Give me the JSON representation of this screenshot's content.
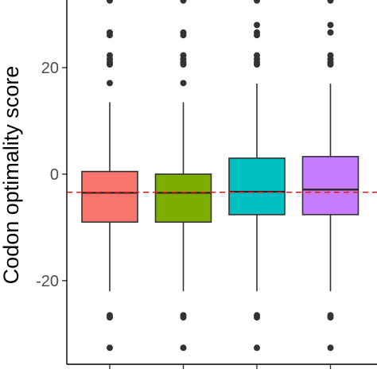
{
  "chart_data": {
    "type": "box",
    "ylabel": "Codon optimality score",
    "ylim": [
      -35.7,
      32.7
    ],
    "y_ticks": [
      20,
      0,
      -20
    ],
    "y_tick_labels": [
      "20",
      "0",
      "-20"
    ],
    "reference_line": {
      "y": -3.4,
      "color": "#e41a1c",
      "style": "dashed"
    },
    "grid": false,
    "legend": "none",
    "series": [
      {
        "color": "#F8766D",
        "whisker_low": -22.0,
        "q1": -9.0,
        "median": -3.5,
        "q3": 0.5,
        "whisker_high": 13.5,
        "outliers": [
          32.6,
          26.6,
          26.1,
          22.3,
          21.6,
          21.0,
          20.6,
          17.1,
          -26.5,
          -26.9,
          -32.6
        ]
      },
      {
        "color": "#7CAE00",
        "whisker_low": -22.0,
        "q1": -9.0,
        "median": -3.5,
        "q3": 0.0,
        "whisker_high": 13.5,
        "outliers": [
          32.6,
          26.6,
          26.1,
          22.3,
          21.6,
          21.0,
          20.6,
          17.1,
          -26.5,
          -26.9,
          -32.6
        ]
      },
      {
        "color": "#00BFC4",
        "whisker_low": -22.0,
        "q1": -7.6,
        "median": -3.3,
        "q3": 3.0,
        "whisker_high": 17.0,
        "outliers": [
          32.6,
          28.0,
          26.6,
          26.1,
          22.3,
          21.6,
          21.0,
          20.6,
          -26.5,
          -26.9,
          -32.6
        ]
      },
      {
        "color": "#C77CFF",
        "whisker_low": -22.0,
        "q1": -7.6,
        "median": -2.9,
        "q3": 3.3,
        "whisker_high": 17.0,
        "outliers": [
          32.6,
          28.0,
          26.6,
          22.3,
          21.6,
          21.0,
          20.6,
          -26.5,
          -26.9,
          -32.6
        ]
      }
    ]
  }
}
